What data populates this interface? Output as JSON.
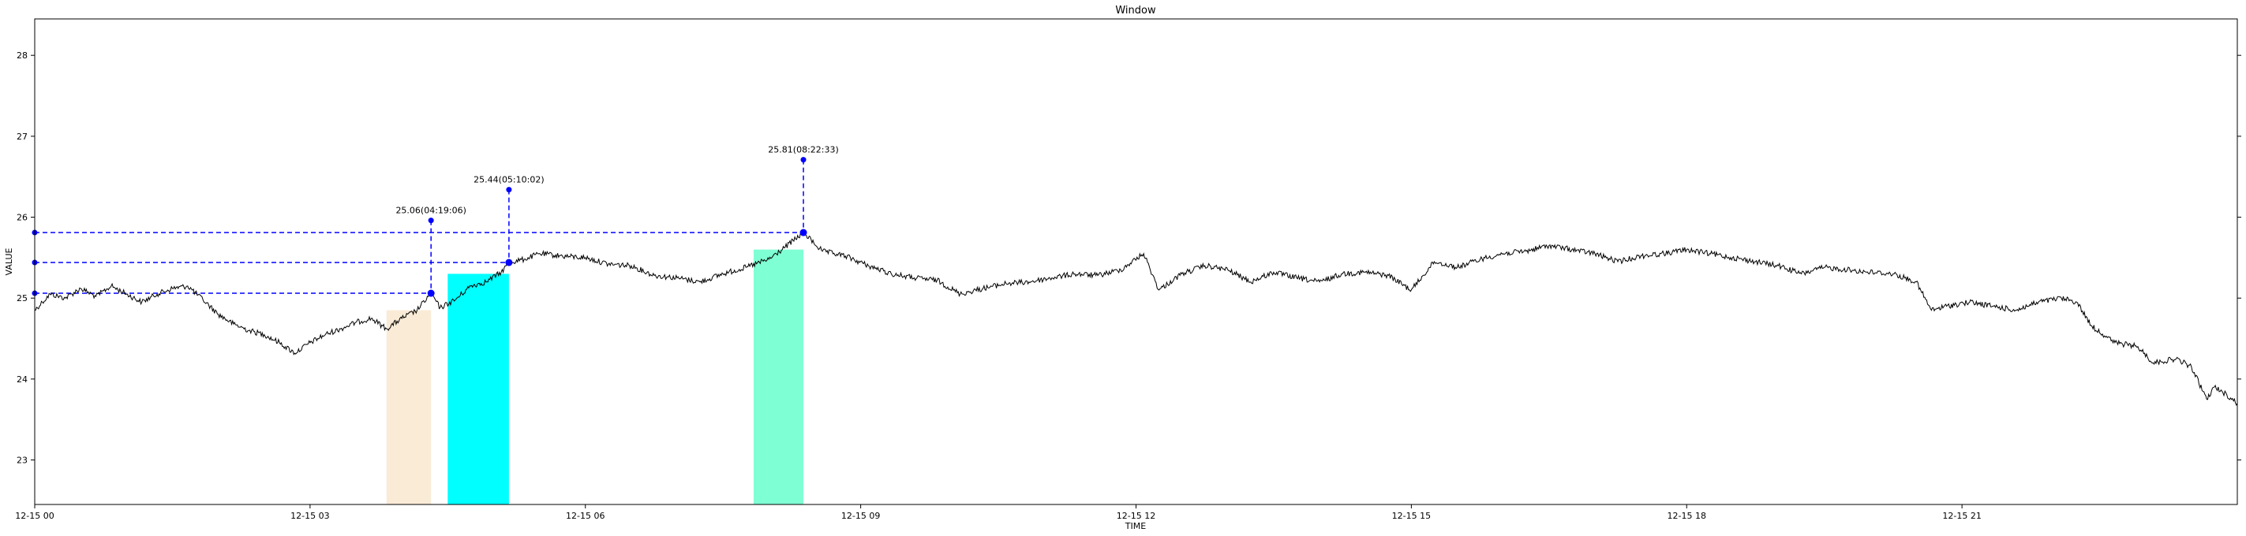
{
  "chart_data": {
    "type": "line",
    "title": "Window",
    "xlabel": "TIME",
    "ylabel": "VALUE",
    "xlim": [
      "2024-12-15 00:00:00",
      "2024-12-16 00:00:00"
    ],
    "ylim": [
      22.45,
      28.45
    ],
    "x_ticks": [
      {
        "t": "2024-12-15 00:00:00",
        "label": "12-15 00"
      },
      {
        "t": "2024-12-15 03:00:00",
        "label": "12-15 03"
      },
      {
        "t": "2024-12-15 06:00:00",
        "label": "12-15 06"
      },
      {
        "t": "2024-12-15 09:00:00",
        "label": "12-15 09"
      },
      {
        "t": "2024-12-15 12:00:00",
        "label": "12-15 12"
      },
      {
        "t": "2024-12-15 15:00:00",
        "label": "12-15 15"
      },
      {
        "t": "2024-12-15 18:00:00",
        "label": "12-15 18"
      },
      {
        "t": "2024-12-15 21:00:00",
        "label": "12-15 21"
      }
    ],
    "y_ticks": [
      {
        "v": 23,
        "label": "23"
      },
      {
        "v": 24,
        "label": "24"
      },
      {
        "v": 25,
        "label": "25"
      },
      {
        "v": 26,
        "label": "26"
      },
      {
        "v": 27,
        "label": "27"
      },
      {
        "v": 28,
        "label": "28"
      }
    ],
    "grid": false,
    "series": [
      {
        "color": "#000000",
        "points": [
          [
            "2024-12-15 00:00:00",
            24.85
          ],
          [
            "2024-12-15 00:05:00",
            24.95
          ],
          [
            "2024-12-15 00:10:00",
            25.05
          ],
          [
            "2024-12-15 00:20:00",
            25.0
          ],
          [
            "2024-12-15 00:30:00",
            25.12
          ],
          [
            "2024-12-15 00:40:00",
            25.02
          ],
          [
            "2024-12-15 00:50:00",
            25.15
          ],
          [
            "2024-12-15 01:00:00",
            25.05
          ],
          [
            "2024-12-15 01:10:00",
            24.95
          ],
          [
            "2024-12-15 01:20:00",
            25.05
          ],
          [
            "2024-12-15 01:30:00",
            25.12
          ],
          [
            "2024-12-15 01:40:00",
            25.15
          ],
          [
            "2024-12-15 01:50:00",
            24.98
          ],
          [
            "2024-12-15 02:00:00",
            24.8
          ],
          [
            "2024-12-15 02:10:00",
            24.68
          ],
          [
            "2024-12-15 02:20:00",
            24.6
          ],
          [
            "2024-12-15 02:30:00",
            24.55
          ],
          [
            "2024-12-15 02:40:00",
            24.45
          ],
          [
            "2024-12-15 02:50:00",
            24.32
          ],
          [
            "2024-12-15 03:00:00",
            24.45
          ],
          [
            "2024-12-15 03:10:00",
            24.55
          ],
          [
            "2024-12-15 03:20:00",
            24.62
          ],
          [
            "2024-12-15 03:30:00",
            24.7
          ],
          [
            "2024-12-15 03:40:00",
            24.75
          ],
          [
            "2024-12-15 03:50:00",
            24.62
          ],
          [
            "2024-12-15 04:00:00",
            24.75
          ],
          [
            "2024-12-15 04:10:00",
            24.85
          ],
          [
            "2024-12-15 04:19:06",
            25.06
          ],
          [
            "2024-12-15 04:25:00",
            24.88
          ],
          [
            "2024-12-15 04:35:00",
            24.98
          ],
          [
            "2024-12-15 04:45:00",
            25.15
          ],
          [
            "2024-12-15 04:55:00",
            25.2
          ],
          [
            "2024-12-15 05:05:00",
            25.32
          ],
          [
            "2024-12-15 05:10:02",
            25.44
          ],
          [
            "2024-12-15 05:20:00",
            25.48
          ],
          [
            "2024-12-15 05:30:00",
            25.55
          ],
          [
            "2024-12-15 05:45:00",
            25.52
          ],
          [
            "2024-12-15 06:00:00",
            25.5
          ],
          [
            "2024-12-15 06:15:00",
            25.42
          ],
          [
            "2024-12-15 06:30:00",
            25.4
          ],
          [
            "2024-12-15 06:45:00",
            25.28
          ],
          [
            "2024-12-15 07:00:00",
            25.25
          ],
          [
            "2024-12-15 07:15:00",
            25.2
          ],
          [
            "2024-12-15 07:30:00",
            25.3
          ],
          [
            "2024-12-15 07:45:00",
            25.38
          ],
          [
            "2024-12-15 08:00:00",
            25.48
          ],
          [
            "2024-12-15 08:10:00",
            25.62
          ],
          [
            "2024-12-15 08:22:33",
            25.81
          ],
          [
            "2024-12-15 08:35:00",
            25.58
          ],
          [
            "2024-12-15 08:50:00",
            25.52
          ],
          [
            "2024-12-15 09:05:00",
            25.4
          ],
          [
            "2024-12-15 09:20:00",
            25.3
          ],
          [
            "2024-12-15 09:35:00",
            25.25
          ],
          [
            "2024-12-15 09:50:00",
            25.22
          ],
          [
            "2024-12-15 10:05:00",
            25.05
          ],
          [
            "2024-12-15 10:20:00",
            25.12
          ],
          [
            "2024-12-15 10:35:00",
            25.18
          ],
          [
            "2024-12-15 10:50:00",
            25.2
          ],
          [
            "2024-12-15 11:05:00",
            25.25
          ],
          [
            "2024-12-15 11:20:00",
            25.3
          ],
          [
            "2024-12-15 11:35:00",
            25.28
          ],
          [
            "2024-12-15 11:50:00",
            25.35
          ],
          [
            "2024-12-15 12:05:00",
            25.55
          ],
          [
            "2024-12-15 12:15:00",
            25.1
          ],
          [
            "2024-12-15 12:30:00",
            25.3
          ],
          [
            "2024-12-15 12:45:00",
            25.4
          ],
          [
            "2024-12-15 13:00:00",
            25.35
          ],
          [
            "2024-12-15 13:15:00",
            25.2
          ],
          [
            "2024-12-15 13:30:00",
            25.32
          ],
          [
            "2024-12-15 13:45:00",
            25.25
          ],
          [
            "2024-12-15 14:00:00",
            25.2
          ],
          [
            "2024-12-15 14:15:00",
            25.3
          ],
          [
            "2024-12-15 14:30:00",
            25.32
          ],
          [
            "2024-12-15 14:45:00",
            25.28
          ],
          [
            "2024-12-15 15:00:00",
            25.1
          ],
          [
            "2024-12-15 15:15:00",
            25.45
          ],
          [
            "2024-12-15 15:30:00",
            25.38
          ],
          [
            "2024-12-15 15:45:00",
            25.48
          ],
          [
            "2024-12-15 16:00:00",
            25.55
          ],
          [
            "2024-12-15 16:15:00",
            25.58
          ],
          [
            "2024-12-15 16:30:00",
            25.65
          ],
          [
            "2024-12-15 16:45:00",
            25.6
          ],
          [
            "2024-12-15 17:00:00",
            25.55
          ],
          [
            "2024-12-15 17:15:00",
            25.45
          ],
          [
            "2024-12-15 17:30:00",
            25.52
          ],
          [
            "2024-12-15 17:45:00",
            25.55
          ],
          [
            "2024-12-15 18:00:00",
            25.6
          ],
          [
            "2024-12-15 18:15:00",
            25.55
          ],
          [
            "2024-12-15 18:30:00",
            25.5
          ],
          [
            "2024-12-15 18:45:00",
            25.45
          ],
          [
            "2024-12-15 19:00:00",
            25.4
          ],
          [
            "2024-12-15 19:15:00",
            25.3
          ],
          [
            "2024-12-15 19:30:00",
            25.38
          ],
          [
            "2024-12-15 19:45:00",
            25.35
          ],
          [
            "2024-12-15 20:00:00",
            25.32
          ],
          [
            "2024-12-15 20:15:00",
            25.3
          ],
          [
            "2024-12-15 20:30:00",
            25.2
          ],
          [
            "2024-12-15 20:40:00",
            24.85
          ],
          [
            "2024-12-15 20:50:00",
            24.9
          ],
          [
            "2024-12-15 21:05:00",
            24.95
          ],
          [
            "2024-12-15 21:20:00",
            24.9
          ],
          [
            "2024-12-15 21:35:00",
            24.85
          ],
          [
            "2024-12-15 21:50:00",
            24.95
          ],
          [
            "2024-12-15 22:05:00",
            25.0
          ],
          [
            "2024-12-15 22:15:00",
            24.95
          ],
          [
            "2024-12-15 22:25:00",
            24.65
          ],
          [
            "2024-12-15 22:40:00",
            24.45
          ],
          [
            "2024-12-15 22:55:00",
            24.4
          ],
          [
            "2024-12-15 23:05:00",
            24.2
          ],
          [
            "2024-12-15 23:20:00",
            24.25
          ],
          [
            "2024-12-15 23:30:00",
            24.15
          ],
          [
            "2024-12-15 23:40:00",
            23.75
          ],
          [
            "2024-12-15 23:45:00",
            23.9
          ],
          [
            "2024-12-15 23:50:00",
            23.85
          ],
          [
            "2024-12-16 00:00:00",
            23.7
          ]
        ]
      }
    ],
    "shaded_regions": [
      {
        "start": "2024-12-15 03:50:00",
        "end": "2024-12-15 04:19:06",
        "top": 24.85,
        "color": "#FAEBD7"
      },
      {
        "start": "2024-12-15 04:30:00",
        "end": "2024-12-15 05:10:02",
        "top": 25.3,
        "color": "#00FFFF"
      },
      {
        "start": "2024-12-15 07:50:00",
        "end": "2024-12-15 08:22:33",
        "top": 25.6,
        "color": "#7FFFD4"
      }
    ],
    "annotations": [
      {
        "t": "2024-12-15 04:19:06",
        "value": 25.06,
        "label_y": 25.96,
        "text": "25.06(04:19:06)"
      },
      {
        "t": "2024-12-15 05:10:02",
        "value": 25.44,
        "label_y": 26.34,
        "text": "25.44(05:10:02)"
      },
      {
        "t": "2024-12-15 08:22:33",
        "value": 25.81,
        "label_y": 26.71,
        "text": "25.81(08:22:33)"
      }
    ],
    "marker_color": "#0000FF"
  }
}
